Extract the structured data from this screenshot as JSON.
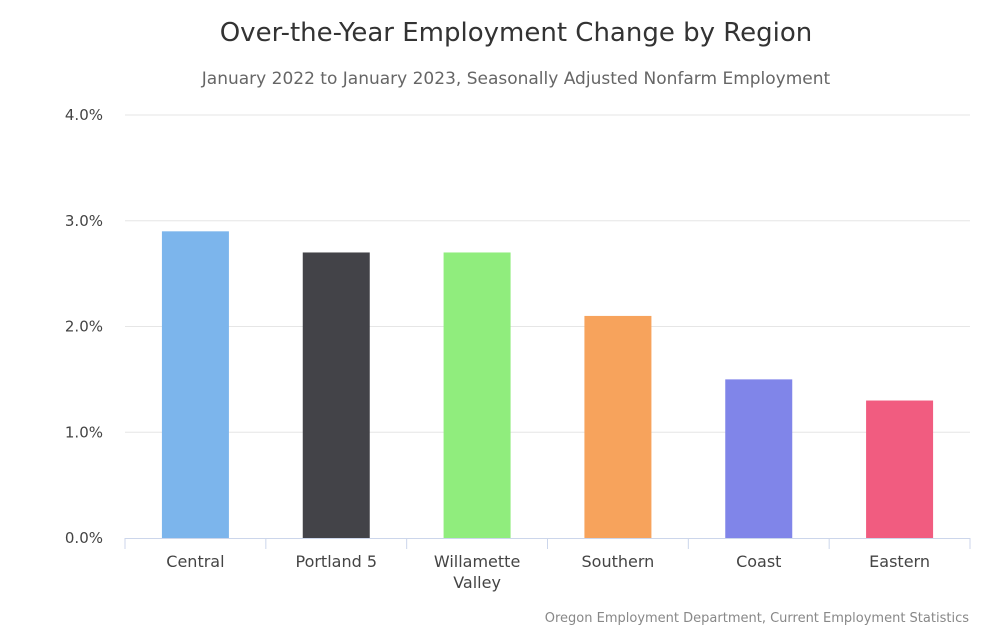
{
  "chart_data": {
    "type": "bar",
    "title": "Over-the-Year Employment Change by Region",
    "subtitle": "January 2022 to January 2023, Seasonally Adjusted Nonfarm Employment",
    "categories": [
      "Central",
      "Portland 5",
      "Willamette Valley",
      "Southern",
      "Coast",
      "Eastern"
    ],
    "values": [
      2.9,
      2.7,
      2.7,
      2.1,
      1.5,
      1.3
    ],
    "colors": [
      "#7cb5ec",
      "#434348",
      "#90ed7d",
      "#f7a35c",
      "#8085e9",
      "#f15c80"
    ],
    "yticks": [
      0,
      1,
      2,
      3,
      4
    ],
    "ytick_labels": [
      "0.0%",
      "1.0%",
      "2.0%",
      "3.0%",
      "4.0%"
    ],
    "ylim": [
      0,
      4
    ],
    "xlabel": "",
    "ylabel": "",
    "grid": true,
    "credit": "Oregon Employment Department, Current Employment Statistics"
  }
}
